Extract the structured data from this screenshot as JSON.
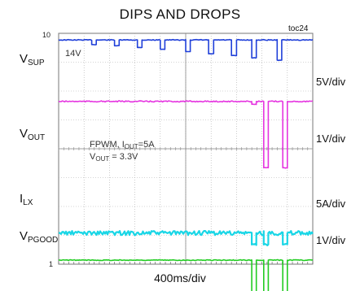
{
  "title": "DIPS AND DROPS",
  "figure_id": "toc24",
  "edge_labels": {
    "top": "10",
    "bottom": "1"
  },
  "x_scale": "400ms/div",
  "annotations": {
    "vsup_level": "14V",
    "cond_1": "FPWM, I",
    "cond_1_sub": "OUT",
    "cond_1_tail": "=5A",
    "cond_2": "V",
    "cond_2_sub": "OUT",
    "cond_2_tail": " = 3.3V"
  },
  "channels": [
    {
      "main": "V",
      "sub": "SUP",
      "scale": "5V/div",
      "color": "#1f3fd9"
    },
    {
      "main": "V",
      "sub": "OUT",
      "scale": "1V/div",
      "color": "#e535e0"
    },
    {
      "main": "I",
      "sub": "LX",
      "scale": "5A/div",
      "color": "#19d6e6"
    },
    {
      "main": "V",
      "sub": "PGOOD",
      "scale": "1V/div",
      "color": "#22cc22"
    }
  ],
  "chart_data": {
    "type": "line",
    "title": "DIPS AND DROPS",
    "xlabel": "400ms/div",
    "grid": true,
    "divisions": {
      "x": 10,
      "y": 8
    },
    "series": [
      {
        "name": "VSUP",
        "scale": "5V/div",
        "baseline_v": 14,
        "dips": [
          {
            "start_div": 1.3,
            "width_div": 0.18,
            "depth_div": 0.16
          },
          {
            "start_div": 2.2,
            "width_div": 0.18,
            "depth_div": 0.2
          },
          {
            "start_div": 3.1,
            "width_div": 0.18,
            "depth_div": 0.26
          },
          {
            "start_div": 4.0,
            "width_div": 0.18,
            "depth_div": 0.32
          },
          {
            "start_div": 5.0,
            "width_div": 0.18,
            "depth_div": 0.4
          },
          {
            "start_div": 5.9,
            "width_div": 0.2,
            "depth_div": 0.48
          },
          {
            "start_div": 6.8,
            "width_div": 0.2,
            "depth_div": 0.54
          },
          {
            "start_div": 7.6,
            "width_div": 0.18,
            "depth_div": 0.62
          },
          {
            "start_div": 8.6,
            "width_div": 0.18,
            "depth_div": 0.7
          }
        ]
      },
      {
        "name": "VOUT",
        "scale": "1V/div",
        "baseline_v": 3.3,
        "dips": [
          {
            "start_div": 7.6,
            "width_div": 0.18,
            "depth_div": 0.1
          },
          {
            "start_div": 8.07,
            "width_div": 0.18,
            "depth_div": 2.3
          },
          {
            "start_div": 8.82,
            "width_div": 0.18,
            "depth_div": 2.3
          }
        ]
      },
      {
        "name": "ILX",
        "scale": "5A/div",
        "current_a": 5,
        "dips": [
          {
            "start_div": 7.6,
            "width_div": 0.18,
            "depth_div": 0.4
          },
          {
            "start_div": 8.07,
            "width_div": 0.18,
            "depth_div": 0.4
          },
          {
            "start_div": 8.82,
            "width_div": 0.18,
            "depth_div": 0.4
          }
        ]
      },
      {
        "name": "VPGOOD",
        "scale": "1V/div",
        "dips": [
          {
            "start_div": 7.6,
            "width_div": 0.18,
            "depth_div": 1.45
          },
          {
            "start_div": 8.07,
            "width_div": 0.18,
            "depth_div": 1.45
          },
          {
            "start_div": 8.82,
            "width_div": 0.18,
            "depth_div": 1.45
          }
        ]
      }
    ]
  }
}
